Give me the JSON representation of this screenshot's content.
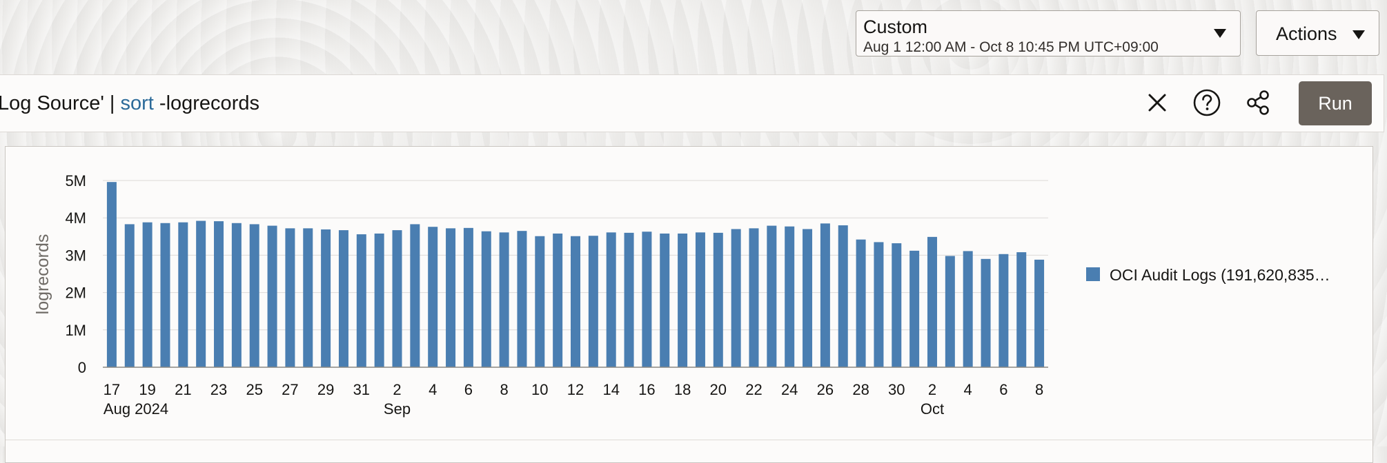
{
  "time_range": {
    "label": "Custom",
    "range": "Aug 1 12:00 AM - Oct 8 10:45 PM UTC+09:00"
  },
  "actions": {
    "label": "Actions"
  },
  "query": {
    "prefix": "Log Source' | ",
    "keyword": "sort",
    "suffix": " -logrecords"
  },
  "toolbar": {
    "clear_icon": "close-icon",
    "help_icon": "help-circle-icon",
    "share_icon": "share-icon",
    "run_label": "Run"
  },
  "colors": {
    "bar": "#4a7eb1",
    "run_button": "#6a635c",
    "keyword": "#2b6a99"
  },
  "legend": {
    "label": "OCI Audit Logs (191,620,835…"
  },
  "chart_data": {
    "type": "bar",
    "ylabel": "logrecords",
    "ylim": [
      0,
      5000000
    ],
    "y_ticks": [
      {
        "value": 0,
        "label": "0"
      },
      {
        "value": 1000000,
        "label": "1M"
      },
      {
        "value": 2000000,
        "label": "2M"
      },
      {
        "value": 3000000,
        "label": "3M"
      },
      {
        "value": 4000000,
        "label": "4M"
      },
      {
        "value": 5000000,
        "label": "5M"
      }
    ],
    "x_tick_labels": [
      "17",
      "19",
      "21",
      "23",
      "25",
      "27",
      "29",
      "31",
      "2",
      "4",
      "6",
      "8",
      "10",
      "12",
      "14",
      "16",
      "18",
      "20",
      "22",
      "24",
      "26",
      "28",
      "30",
      "2",
      "4",
      "6",
      "8"
    ],
    "x_group_labels": [
      {
        "label": "Aug 2024",
        "at_tick": 0
      },
      {
        "label": "Sep",
        "at_tick": 8
      },
      {
        "label": "Oct",
        "at_tick": 23
      }
    ],
    "grid": true,
    "legend_position": "right",
    "series": [
      {
        "name": "OCI Audit Logs (191,620,835…",
        "categories": [
          "Aug 17",
          "Aug 18",
          "Aug 19",
          "Aug 20",
          "Aug 21",
          "Aug 22",
          "Aug 23",
          "Aug 24",
          "Aug 25",
          "Aug 26",
          "Aug 27",
          "Aug 28",
          "Aug 29",
          "Aug 30",
          "Aug 31",
          "Sep 1",
          "Sep 2",
          "Sep 3",
          "Sep 4",
          "Sep 5",
          "Sep 6",
          "Sep 7",
          "Sep 8",
          "Sep 9",
          "Sep 10",
          "Sep 11",
          "Sep 12",
          "Sep 13",
          "Sep 14",
          "Sep 15",
          "Sep 16",
          "Sep 17",
          "Sep 18",
          "Sep 19",
          "Sep 20",
          "Sep 21",
          "Sep 22",
          "Sep 23",
          "Sep 24",
          "Sep 25",
          "Sep 26",
          "Sep 27",
          "Sep 28",
          "Sep 29",
          "Sep 30",
          "Oct 1",
          "Oct 2",
          "Oct 3",
          "Oct 4",
          "Oct 5",
          "Oct 6",
          "Oct 7",
          "Oct 8"
        ],
        "values": [
          4960000,
          3830000,
          3880000,
          3860000,
          3880000,
          3920000,
          3910000,
          3860000,
          3830000,
          3790000,
          3720000,
          3720000,
          3690000,
          3670000,
          3560000,
          3580000,
          3670000,
          3830000,
          3760000,
          3720000,
          3730000,
          3640000,
          3610000,
          3650000,
          3510000,
          3580000,
          3510000,
          3520000,
          3610000,
          3600000,
          3630000,
          3580000,
          3580000,
          3610000,
          3600000,
          3700000,
          3720000,
          3790000,
          3770000,
          3700000,
          3850000,
          3800000,
          3420000,
          3350000,
          3320000,
          3120000,
          3490000,
          2980000,
          3110000,
          2900000,
          3030000,
          3080000,
          2880000
        ]
      }
    ]
  }
}
